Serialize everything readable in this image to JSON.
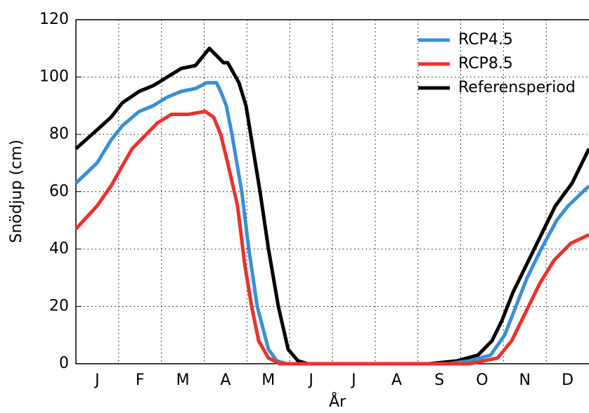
{
  "chart_data": {
    "type": "line",
    "x_label": "År",
    "y_label": "Snödjup (cm)",
    "categories": [
      "J",
      "F",
      "M",
      "A",
      "M",
      "J",
      "J",
      "A",
      "S",
      "O",
      "N",
      "D"
    ],
    "xlim": [
      0,
      365
    ],
    "ylim": [
      0,
      120
    ],
    "yticks": [
      0,
      20,
      40,
      60,
      80,
      100,
      120
    ],
    "grid": true,
    "legend": "upper right",
    "series": [
      {
        "name": "RCP4.5",
        "color": "#3a8fd5",
        "x": [
          0,
          15,
          25,
          33,
          45,
          55,
          65,
          75,
          85,
          93,
          100,
          103,
          107,
          111,
          118,
          123,
          129,
          137,
          143,
          150,
          265,
          280,
          295,
          305,
          313,
          321,
          331,
          342,
          350,
          365
        ],
        "values": [
          63,
          70,
          78,
          83,
          88,
          90,
          93,
          95,
          96,
          98,
          98,
          95,
          90,
          80,
          60,
          40,
          20,
          5,
          1,
          0,
          0,
          1,
          3,
          10,
          20,
          30,
          40,
          50,
          55,
          62
        ]
      },
      {
        "name": "RCP8.5",
        "color": "#e8322d",
        "x": [
          0,
          15,
          25,
          33,
          40,
          48,
          58,
          68,
          80,
          92,
          98,
          103,
          108,
          115,
          120,
          125,
          130,
          137,
          145,
          280,
          300,
          310,
          320,
          330,
          340,
          352,
          365
        ],
        "values": [
          47,
          55,
          62,
          69,
          75,
          79,
          84,
          87,
          87,
          88,
          86,
          80,
          70,
          55,
          35,
          20,
          8,
          2,
          0,
          0,
          2,
          8,
          18,
          28,
          36,
          42,
          45
        ]
      },
      {
        "name": "Referensperiod",
        "color": "#000000",
        "x": [
          0,
          16,
          25,
          33,
          45,
          55,
          65,
          75,
          85,
          90,
          95,
          97,
          105,
          108,
          116,
          121,
          126,
          131,
          137,
          144,
          151,
          158,
          165,
          251,
          271,
          286,
          296,
          303,
          311,
          321,
          331,
          341,
          353,
          365
        ],
        "values": [
          75,
          82,
          86,
          91,
          95,
          97,
          100,
          103,
          104,
          107,
          110,
          109,
          105,
          105,
          98,
          90,
          75,
          60,
          40,
          20,
          5,
          1,
          0,
          0,
          1,
          3,
          8,
          15,
          25,
          35,
          45,
          55,
          63,
          75
        ]
      }
    ]
  }
}
